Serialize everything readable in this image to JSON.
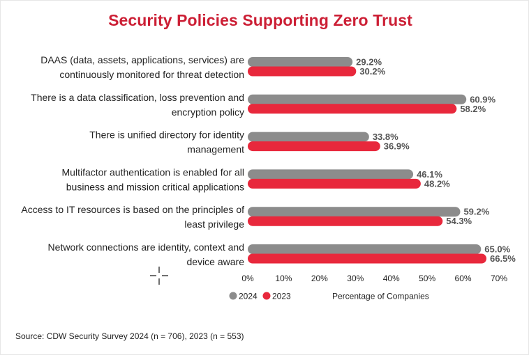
{
  "chart_data": {
    "type": "bar",
    "orientation": "horizontal",
    "title": "Security Policies Supporting Zero Trust",
    "categories": [
      [
        "DAAS (data, assets, applications, services) are",
        "continuously monitored for threat detection"
      ],
      [
        "There is a data classification, loss prevention and",
        "encryption policy"
      ],
      [
        "There is unified directory for identity",
        "management"
      ],
      [
        "Multifactor authentication is enabled for all",
        "business and mission critical applications"
      ],
      [
        "Access to IT resources is based on the principles of",
        "least privilege"
      ],
      [
        "Network connections are identity, context and",
        "device aware"
      ]
    ],
    "series": [
      {
        "name": "2024",
        "color": "#8c8c8c",
        "values": [
          29.2,
          60.9,
          33.8,
          46.1,
          59.2,
          65.0
        ],
        "labels": [
          "29.2%",
          "60.9%",
          "33.8%",
          "46.1%",
          "59.2%",
          "65.0%"
        ]
      },
      {
        "name": "2023",
        "color": "#e8283c",
        "values": [
          30.2,
          58.2,
          36.9,
          48.2,
          54.3,
          66.5
        ],
        "labels": [
          "30.2%",
          "58.2%",
          "36.9%",
          "48.2%",
          "54.3%",
          "66.5%"
        ]
      }
    ],
    "xlim": [
      0,
      70
    ],
    "xticks": [
      "0%",
      "10%",
      "20%",
      "30%",
      "40%",
      "50%",
      "60%",
      "70%"
    ],
    "xlabel": "Percentage of Companies",
    "grid": false,
    "legend_position": "bottom"
  },
  "source": "Source: CDW Security Survey 2024 (n = 706), 2023 (n = 553)"
}
